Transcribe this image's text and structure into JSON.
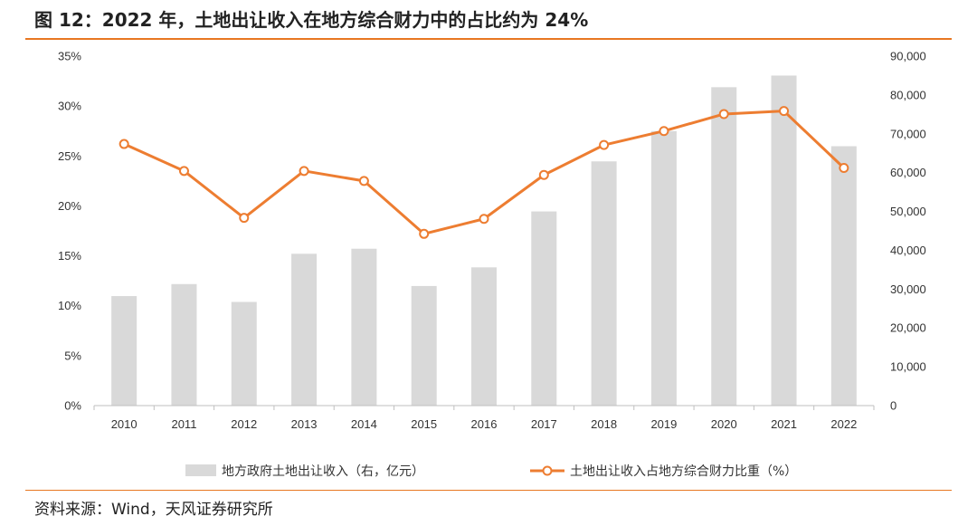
{
  "title": "图 12：2022 年，土地出让收入在地方综合财力中的占比约为 24%",
  "source": "资料来源：Wind，天风证券研究所",
  "colors": {
    "accent": "#e87722",
    "bar": "#d9d9d9",
    "line": "#ed7d31"
  },
  "chart_data": {
    "type": "bar",
    "categories": [
      "2010",
      "2011",
      "2012",
      "2013",
      "2014",
      "2015",
      "2016",
      "2017",
      "2018",
      "2019",
      "2020",
      "2021",
      "2022"
    ],
    "series": [
      {
        "name": "地方政府土地出让收入（右，亿元）",
        "type": "bar",
        "axis": "right",
        "values": [
          28200,
          31300,
          26700,
          39100,
          40400,
          30800,
          35600,
          50000,
          62900,
          70700,
          82000,
          85000,
          66800
        ]
      },
      {
        "name": "土地出让收入占地方综合财力比重（%）",
        "type": "line",
        "axis": "left",
        "values": [
          26.2,
          23.5,
          18.8,
          23.5,
          22.5,
          17.2,
          18.7,
          23.1,
          26.1,
          27.5,
          29.2,
          29.5,
          23.8
        ]
      }
    ],
    "left_axis": {
      "ylim": [
        0,
        35
      ],
      "ticks": [
        "0%",
        "5%",
        "10%",
        "15%",
        "20%",
        "25%",
        "30%",
        "35%"
      ]
    },
    "right_axis": {
      "ylim": [
        0,
        90000
      ],
      "ticks": [
        "0",
        "10,000",
        "20,000",
        "30,000",
        "40,000",
        "50,000",
        "60,000",
        "70,000",
        "80,000",
        "90,000"
      ]
    },
    "grid": false,
    "legend_position": "bottom"
  }
}
